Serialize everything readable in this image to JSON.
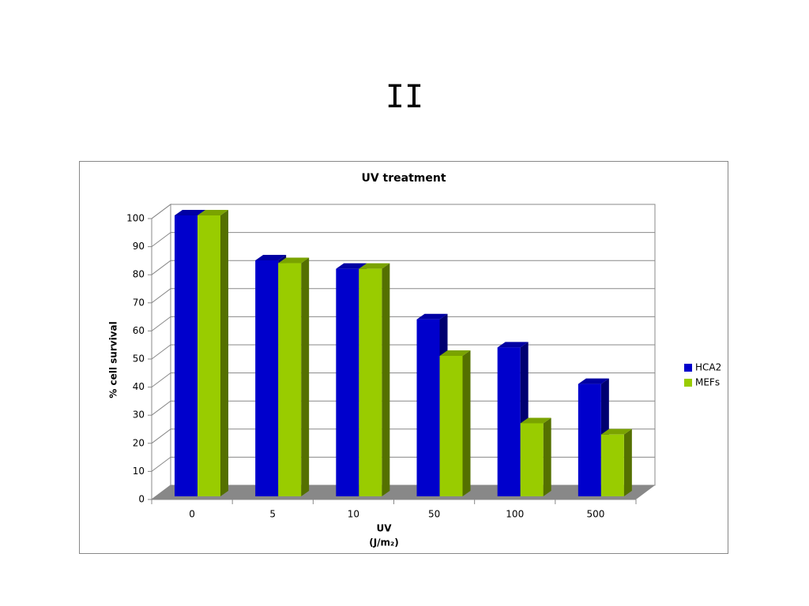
{
  "slide_title": "II",
  "chart_data": {
    "type": "bar3d",
    "title": "UV treatment",
    "x_label": "UV",
    "x_label_unit": "(J/m₂)",
    "y_label": "% cell survival",
    "categories": [
      "0",
      "5",
      "10",
      "50",
      "100",
      "500"
    ],
    "series": [
      {
        "name": "HCA2",
        "color": "#0000cc",
        "values": [
          100,
          84,
          81,
          63,
          53,
          40
        ]
      },
      {
        "name": "MEFs",
        "color": "#99cc00",
        "values": [
          100,
          83,
          81,
          50,
          26,
          22
        ]
      }
    ],
    "ylim": [
      0,
      100
    ],
    "yticks": [
      0,
      10,
      20,
      30,
      40,
      50,
      60,
      70,
      80,
      90,
      100
    ],
    "grid": true,
    "legend": "right"
  }
}
